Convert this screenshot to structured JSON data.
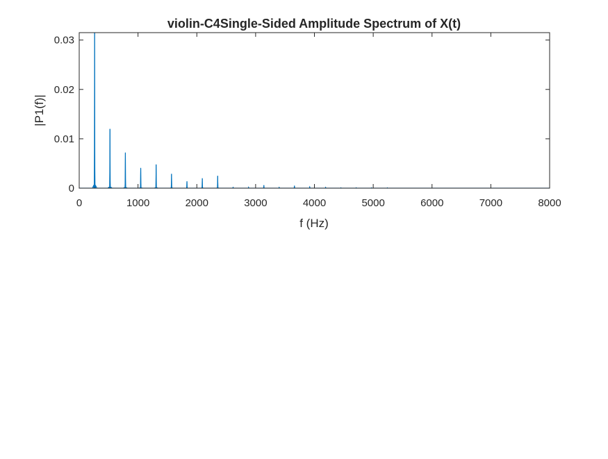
{
  "chart_data": {
    "type": "line",
    "title": "violin-C4Single-Sided Amplitude Spectrum of X(t)",
    "xlabel": "f (Hz)",
    "ylabel": "|P1(f)|",
    "xlim": [
      0,
      8000
    ],
    "ylim": [
      0,
      0.0315
    ],
    "xticks": [
      0,
      1000,
      2000,
      3000,
      4000,
      5000,
      6000,
      7000,
      8000
    ],
    "xtick_labels": [
      "0",
      "1000",
      "2000",
      "3000",
      "4000",
      "5000",
      "6000",
      "7000",
      "8000"
    ],
    "yticks": [
      0,
      0.01,
      0.02,
      0.03
    ],
    "ytick_labels": [
      "0",
      "0.01",
      "0.02",
      "0.03"
    ],
    "grid": false,
    "box": true,
    "line_color": "#0072BD",
    "series": [
      {
        "peaks": [
          {
            "f": 262,
            "amp": 0.0315
          },
          {
            "f": 523,
            "amp": 0.012
          },
          {
            "f": 785,
            "amp": 0.0072
          },
          {
            "f": 1046,
            "amp": 0.0041
          },
          {
            "f": 1308,
            "amp": 0.0048
          },
          {
            "f": 1570,
            "amp": 0.0029
          },
          {
            "f": 1832,
            "amp": 0.0014
          },
          {
            "f": 2093,
            "amp": 0.002
          },
          {
            "f": 2355,
            "amp": 0.0025
          },
          {
            "f": 2617,
            "amp": 0.0002
          },
          {
            "f": 2880,
            "amp": 0.0002
          },
          {
            "f": 3140,
            "amp": 0.0006
          },
          {
            "f": 3400,
            "amp": 0.0002
          },
          {
            "f": 3660,
            "amp": 0.0005
          },
          {
            "f": 3920,
            "amp": 0.0003
          },
          {
            "f": 4190,
            "amp": 0.0002
          },
          {
            "f": 4450,
            "amp": 0.0001
          },
          {
            "f": 4710,
            "amp": 0.0001
          },
          {
            "f": 4970,
            "amp": 0.0001
          },
          {
            "f": 5240,
            "amp": 0.0001
          }
        ]
      }
    ]
  }
}
